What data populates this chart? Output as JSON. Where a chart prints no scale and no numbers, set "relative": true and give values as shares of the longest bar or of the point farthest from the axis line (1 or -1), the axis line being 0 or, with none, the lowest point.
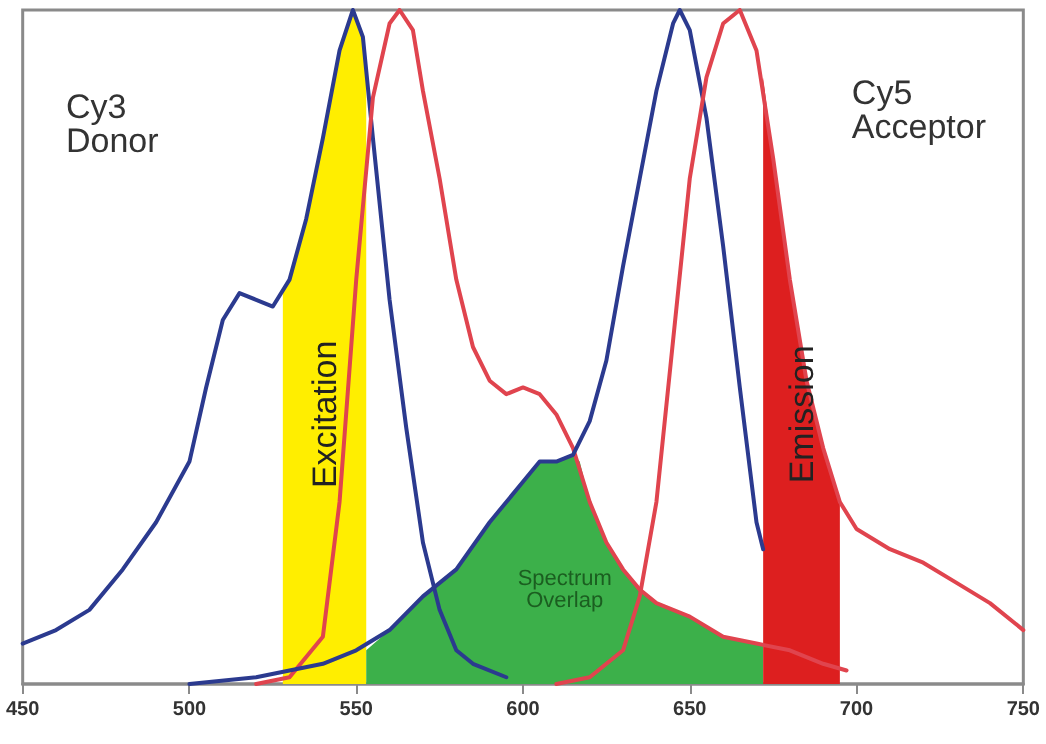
{
  "chart_data": {
    "type": "line",
    "relative": true,
    "xlim": [
      450,
      750
    ],
    "xticks": [
      450,
      500,
      550,
      600,
      650,
      700,
      750
    ],
    "grid": false,
    "legend": false,
    "marker": "none",
    "annotations": [
      "Cy3 Donor",
      "Cy5 Acceptor"
    ],
    "series": [
      {
        "type": "area",
        "name": "Excitation",
        "color": "#ffee00",
        "x": [
          528,
          530,
          535,
          540,
          545,
          549,
          552,
          553
        ],
        "values": [
          0.58,
          0.6,
          0.69,
          0.81,
          0.94,
          1.0,
          0.96,
          0.9
        ]
      },
      {
        "type": "area",
        "name": "Spectrum Overlap",
        "color": "#3cb04a",
        "x": [
          553,
          560,
          570,
          580,
          590,
          600,
          605,
          610,
          615,
          617,
          620,
          625,
          630,
          635,
          640,
          650,
          660,
          670,
          672
        ],
        "values": [
          0.05,
          0.08,
          0.13,
          0.17,
          0.24,
          0.3,
          0.33,
          0.33,
          0.34,
          0.33,
          0.27,
          0.21,
          0.17,
          0.14,
          0.12,
          0.1,
          0.07,
          0.06,
          0.06
        ]
      },
      {
        "type": "area",
        "name": "Emission",
        "color": "#dd1f1f",
        "x": [
          672,
          675,
          680,
          685,
          690,
          695
        ],
        "values": [
          0.9,
          0.78,
          0.6,
          0.45,
          0.35,
          0.27
        ]
      },
      {
        "color": "#2b3a8f",
        "x": [
          450,
          460,
          470,
          480,
          490,
          500,
          505,
          510,
          515,
          520,
          525,
          530,
          535,
          540,
          545,
          549,
          552,
          555,
          560,
          565,
          570,
          575,
          580,
          585,
          595
        ],
        "values": [
          0.06,
          0.08,
          0.11,
          0.17,
          0.24,
          0.33,
          0.44,
          0.54,
          0.58,
          0.57,
          0.56,
          0.6,
          0.69,
          0.81,
          0.94,
          1.0,
          0.96,
          0.81,
          0.57,
          0.38,
          0.21,
          0.11,
          0.05,
          0.03,
          0.01
        ]
      },
      {
        "color": "#e0444e",
        "x": [
          520,
          530,
          540,
          545,
          550,
          555,
          560,
          563,
          567,
          570,
          575,
          580,
          585,
          590,
          595,
          600,
          605,
          610,
          615,
          620,
          625,
          630,
          635,
          640,
          650,
          660,
          670,
          680,
          690,
          697
        ],
        "values": [
          0.0,
          0.01,
          0.07,
          0.27,
          0.6,
          0.87,
          0.98,
          1.0,
          0.97,
          0.88,
          0.75,
          0.6,
          0.5,
          0.45,
          0.43,
          0.44,
          0.43,
          0.4,
          0.35,
          0.27,
          0.21,
          0.17,
          0.14,
          0.12,
          0.1,
          0.07,
          0.06,
          0.05,
          0.03,
          0.02
        ]
      },
      {
        "color": "#2b3a8f",
        "x": [
          500,
          520,
          540,
          550,
          560,
          570,
          580,
          590,
          600,
          605,
          610,
          615,
          620,
          625,
          630,
          635,
          640,
          645,
          647,
          650,
          655,
          660,
          665,
          670,
          672
        ],
        "values": [
          0.0,
          0.01,
          0.03,
          0.05,
          0.08,
          0.13,
          0.17,
          0.24,
          0.3,
          0.33,
          0.33,
          0.34,
          0.39,
          0.48,
          0.62,
          0.75,
          0.88,
          0.98,
          1.0,
          0.97,
          0.84,
          0.65,
          0.44,
          0.24,
          0.2
        ]
      },
      {
        "color": "#e0444e",
        "x": [
          610,
          620,
          630,
          635,
          640,
          645,
          650,
          655,
          660,
          665,
          670,
          675,
          680,
          685,
          690,
          695,
          700,
          710,
          720,
          730,
          740,
          750
        ],
        "values": [
          0.0,
          0.01,
          0.05,
          0.13,
          0.27,
          0.51,
          0.75,
          0.9,
          0.98,
          1.0,
          0.94,
          0.78,
          0.6,
          0.45,
          0.35,
          0.27,
          0.23,
          0.2,
          0.18,
          0.15,
          0.12,
          0.08
        ]
      }
    ]
  }
}
